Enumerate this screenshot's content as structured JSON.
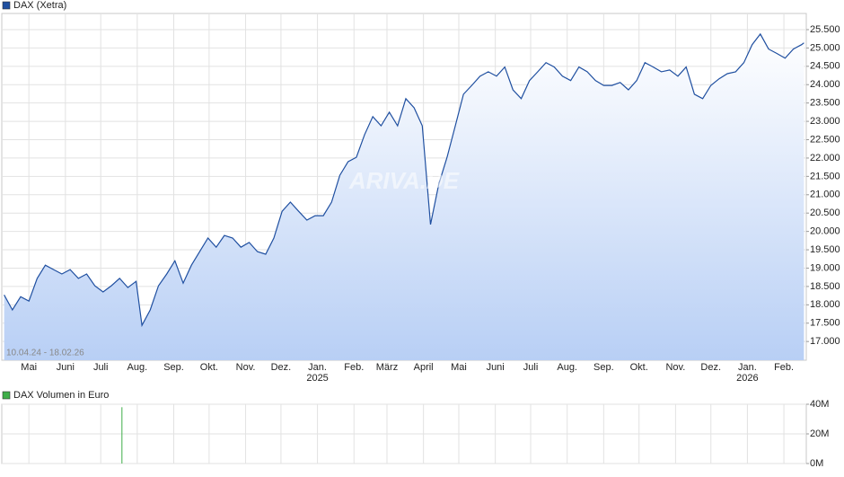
{
  "chart_data": [
    {
      "type": "line",
      "range_label": "10.04.24 - 18.02.26",
      "watermark": "ARIVA.DE",
      "grid": true,
      "area": true,
      "x": [
        "2024-04-10",
        "2024-04-17",
        "2024-04-24",
        "2024-05-01",
        "2024-05-08",
        "2024-05-15",
        "2024-05-22",
        "2024-05-29",
        "2024-06-05",
        "2024-06-12",
        "2024-06-19",
        "2024-06-26",
        "2024-07-03",
        "2024-07-10",
        "2024-07-17",
        "2024-07-24",
        "2024-07-31",
        "2024-08-05",
        "2024-08-12",
        "2024-08-19",
        "2024-08-26",
        "2024-09-02",
        "2024-09-09",
        "2024-09-16",
        "2024-09-23",
        "2024-09-30",
        "2024-10-07",
        "2024-10-14",
        "2024-10-21",
        "2024-10-28",
        "2024-11-04",
        "2024-11-11",
        "2024-11-18",
        "2024-11-25",
        "2024-12-02",
        "2024-12-09",
        "2024-12-16",
        "2024-12-23",
        "2024-12-30",
        "2025-01-06",
        "2025-01-13",
        "2025-01-20",
        "2025-01-27",
        "2025-02-03",
        "2025-02-10",
        "2025-02-17",
        "2025-02-24",
        "2025-03-03",
        "2025-03-10",
        "2025-03-17",
        "2025-03-24",
        "2025-03-31",
        "2025-04-07",
        "2025-04-14",
        "2025-04-21",
        "2025-04-28",
        "2025-05-05",
        "2025-05-12",
        "2025-05-19",
        "2025-05-26",
        "2025-06-02",
        "2025-06-09",
        "2025-06-16",
        "2025-06-23",
        "2025-06-30",
        "2025-07-07",
        "2025-07-14",
        "2025-07-21",
        "2025-07-28",
        "2025-08-04",
        "2025-08-11",
        "2025-08-18",
        "2025-08-25",
        "2025-09-01",
        "2025-09-08",
        "2025-09-15",
        "2025-09-22",
        "2025-09-29",
        "2025-10-06",
        "2025-10-13",
        "2025-10-20",
        "2025-10-27",
        "2025-11-03",
        "2025-11-10",
        "2025-11-17",
        "2025-11-24",
        "2025-12-01",
        "2025-12-08",
        "2025-12-15",
        "2025-12-22",
        "2025-12-29",
        "2026-01-05",
        "2026-01-12",
        "2026-01-19",
        "2026-01-26",
        "2026-02-02",
        "2026-02-09",
        "2026-02-16",
        "2026-02-18"
      ],
      "series": [
        {
          "name": "DAX (Xetra)",
          "color": "#1f4fa0",
          "values": [
            18270,
            17860,
            18220,
            18100,
            18720,
            19080,
            18960,
            18840,
            18960,
            18720,
            18840,
            18520,
            18350,
            18520,
            18720,
            18470,
            18640,
            17440,
            17860,
            18520,
            18840,
            19200,
            18590,
            19080,
            19450,
            19820,
            19570,
            19890,
            19820,
            19570,
            19700,
            19450,
            19380,
            19820,
            20550,
            20800,
            20550,
            20310,
            20430,
            20430,
            20800,
            21530,
            21900,
            22020,
            22640,
            23130,
            22880,
            23250,
            22880,
            23620,
            23370,
            22880,
            20190,
            21290,
            22020,
            22880,
            23740,
            23980,
            24230,
            24350,
            24230,
            24480,
            23860,
            23620,
            24110,
            24350,
            24600,
            24480,
            24230,
            24110,
            24480,
            24350,
            24110,
            23980,
            23980,
            24060,
            23860,
            24110,
            24600,
            24480,
            24350,
            24400,
            24230,
            24480,
            23740,
            23620,
            23980,
            24160,
            24300,
            24350,
            24600,
            25090,
            25380,
            24970,
            24850,
            24720,
            24970,
            25090,
            25140
          ]
        }
      ],
      "xlim": [
        "2024-04-08",
        "2026-02-20"
      ],
      "xticks": [
        {
          "value": "2024-05-01",
          "label": "Mai"
        },
        {
          "value": "2024-06-01",
          "label": "Juni"
        },
        {
          "value": "2024-07-01",
          "label": "Juli"
        },
        {
          "value": "2024-08-01",
          "label": "Aug."
        },
        {
          "value": "2024-09-01",
          "label": "Sep."
        },
        {
          "value": "2024-10-01",
          "label": "Okt."
        },
        {
          "value": "2024-11-01",
          "label": "Nov."
        },
        {
          "value": "2024-12-01",
          "label": "Dez."
        },
        {
          "value": "2025-01-01",
          "label": "Jan.",
          "year": "2025"
        },
        {
          "value": "2025-02-01",
          "label": "Feb."
        },
        {
          "value": "2025-03-01",
          "label": "März"
        },
        {
          "value": "2025-04-01",
          "label": "April"
        },
        {
          "value": "2025-05-01",
          "label": "Mai"
        },
        {
          "value": "2025-06-01",
          "label": "Juni"
        },
        {
          "value": "2025-07-01",
          "label": "Juli"
        },
        {
          "value": "2025-08-01",
          "label": "Aug."
        },
        {
          "value": "2025-09-01",
          "label": "Sep."
        },
        {
          "value": "2025-10-01",
          "label": "Okt."
        },
        {
          "value": "2025-11-01",
          "label": "Nov."
        },
        {
          "value": "2025-12-01",
          "label": "Dez."
        },
        {
          "value": "2026-01-01",
          "label": "Jan.",
          "year": "2026"
        },
        {
          "value": "2026-02-01",
          "label": "Feb."
        }
      ],
      "ylim": [
        16490,
        25940
      ],
      "yticks": [
        {
          "value": 17000,
          "label": "17.000"
        },
        {
          "value": 17500,
          "label": "17.500"
        },
        {
          "value": 18000,
          "label": "18.000"
        },
        {
          "value": 18500,
          "label": "18.500"
        },
        {
          "value": 19000,
          "label": "19.000"
        },
        {
          "value": 19500,
          "label": "19.500"
        },
        {
          "value": 20000,
          "label": "20.000"
        },
        {
          "value": 20500,
          "label": "20.500"
        },
        {
          "value": 21000,
          "label": "21.000"
        },
        {
          "value": 21500,
          "label": "21.500"
        },
        {
          "value": 22000,
          "label": "22.000"
        },
        {
          "value": 22500,
          "label": "22.500"
        },
        {
          "value": 23000,
          "label": "23.000"
        },
        {
          "value": 23500,
          "label": "23.500"
        },
        {
          "value": 24000,
          "label": "24.000"
        },
        {
          "value": 24500,
          "label": "24.500"
        },
        {
          "value": 25000,
          "label": "25.000"
        },
        {
          "value": 25500,
          "label": "25.500"
        }
      ]
    },
    {
      "type": "bar",
      "grid": true,
      "x": [
        "2024-07-19"
      ],
      "series": [
        {
          "name": "DAX Volumen in Euro",
          "color": "#3fae49",
          "values": [
            38000000
          ]
        }
      ],
      "xlim": [
        "2024-04-08",
        "2026-02-20"
      ],
      "ylim": [
        0,
        40000000
      ],
      "yticks": [
        {
          "value": 0,
          "label": "0M"
        },
        {
          "value": 20000000,
          "label": "20M"
        },
        {
          "value": 40000000,
          "label": "40M"
        }
      ]
    }
  ]
}
